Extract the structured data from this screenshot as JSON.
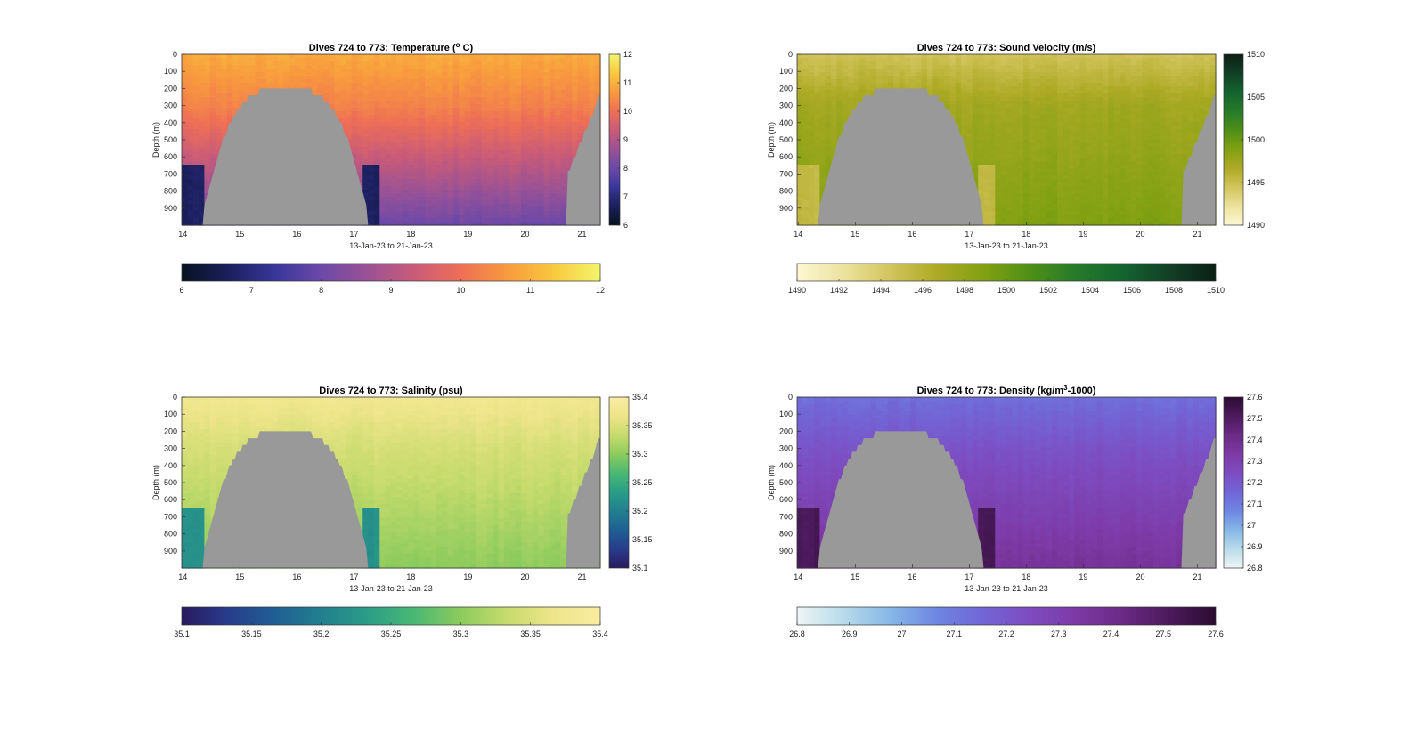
{
  "chart_data": [
    {
      "type": "heatmap",
      "title_prefix": "Dives 724 to 773: Temperature (",
      "title_sup": "o",
      "title_suffix": " C)",
      "xlabel": "13-Jan-23 to 21-Jan-23",
      "ylabel": "Depth (m)",
      "x_ticks": [
        "14",
        "15",
        "16",
        "17",
        "18",
        "19",
        "20",
        "21"
      ],
      "y_ticks": [
        "0",
        "100",
        "200",
        "300",
        "400",
        "500",
        "600",
        "700",
        "800",
        "900"
      ],
      "xlim": [
        13.98,
        21.32
      ],
      "ylim": [
        0,
        1000
      ],
      "clim": [
        6,
        12
      ],
      "colorbar_ticks": [
        "6",
        "7",
        "8",
        "9",
        "10",
        "11",
        "12"
      ],
      "colormap": [
        "#06131f",
        "#1b1f5c",
        "#38369a",
        "#6b49a8",
        "#9a5295",
        "#c95b78",
        "#ee6f56",
        "#f89a3e",
        "#f8c93e",
        "#f3f56c"
      ],
      "profile": {
        "top": 10.9,
        "thermocline": 10.3,
        "bottom": 8.0,
        "hole": 6.7
      }
    },
    {
      "type": "heatmap",
      "title_prefix": "Dives 724 to 773: Sound Velocity (m/s)",
      "title_sup": "",
      "title_suffix": "",
      "xlabel": "13-Jan-23 to 21-Jan-23",
      "ylabel": "Depth (m)",
      "x_ticks": [
        "14",
        "15",
        "16",
        "17",
        "18",
        "19",
        "20",
        "21"
      ],
      "y_ticks": [
        "0",
        "100",
        "200",
        "300",
        "400",
        "500",
        "600",
        "700",
        "800",
        "900"
      ],
      "xlim": [
        13.98,
        21.32
      ],
      "ylim": [
        0,
        1000
      ],
      "clim": [
        1490,
        1510
      ],
      "colorbar_ticks": [
        "1490",
        "1492",
        "1494",
        "1496",
        "1498",
        "1500",
        "1502",
        "1504",
        "1506",
        "1508",
        "1510"
      ],
      "side_colorbar_ticks": [
        "1490",
        "1495",
        "1500",
        "1505",
        "1510"
      ],
      "colormap": [
        "#fdf8d4",
        "#ece29e",
        "#d2c45d",
        "#adaa25",
        "#82a112",
        "#4f8f17",
        "#267a2a",
        "#14642f",
        "#123f26",
        "#0c1f14"
      ],
      "profile": {
        "top": 1494.6,
        "thermocline": 1497.3,
        "bottom": 1499.0,
        "hole": 1495.5
      }
    },
    {
      "type": "heatmap",
      "title_prefix": "Dives 724 to 773: Salinity (psu)",
      "title_sup": "",
      "title_suffix": "",
      "xlabel": "13-Jan-23 to 21-Jan-23",
      "ylabel": "Depth (m)",
      "x_ticks": [
        "14",
        "15",
        "16",
        "17",
        "18",
        "19",
        "20",
        "21"
      ],
      "y_ticks": [
        "0",
        "100",
        "200",
        "300",
        "400",
        "500",
        "600",
        "700",
        "800",
        "900"
      ],
      "xlim": [
        13.98,
        21.32
      ],
      "ylim": [
        0,
        1000
      ],
      "clim": [
        35.1,
        35.4
      ],
      "colorbar_ticks": [
        "35.1",
        "35.15",
        "35.2",
        "35.25",
        "35.3",
        "35.35",
        "35.4"
      ],
      "colormap": [
        "#2a1a5e",
        "#283c8c",
        "#1f5f94",
        "#227f8f",
        "#2a9d87",
        "#4ab873",
        "#8dcb5d",
        "#c7db6d",
        "#eee58a",
        "#f9eca1"
      ],
      "profile": {
        "top": 35.375,
        "thermocline": 35.345,
        "bottom": 35.3,
        "hole": 35.22
      }
    },
    {
      "type": "heatmap",
      "title_prefix": "Dives 724 to 773: Density (kg/m",
      "title_sup": "3",
      "title_suffix": "-1000)",
      "xlabel": "13-Jan-23 to 21-Jan-23",
      "ylabel": "Depth (m)",
      "x_ticks": [
        "14",
        "15",
        "16",
        "17",
        "18",
        "19",
        "20",
        "21"
      ],
      "y_ticks": [
        "0",
        "100",
        "200",
        "300",
        "400",
        "500",
        "600",
        "700",
        "800",
        "900"
      ],
      "xlim": [
        13.98,
        21.32
      ],
      "ylim": [
        0,
        1000
      ],
      "clim": [
        26.8,
        27.6
      ],
      "colorbar_ticks": [
        "26.8",
        "26.9",
        "27",
        "27.1",
        "27.2",
        "27.3",
        "27.4",
        "27.5",
        "27.6"
      ],
      "side_colorbar_ticks": [
        "26.8",
        "26.9",
        "27",
        "27.1",
        "27.2",
        "27.3",
        "27.4",
        "27.5",
        "27.6"
      ],
      "colormap": [
        "#eef5f5",
        "#b8dbea",
        "#86b7e6",
        "#6e86e2",
        "#7265d6",
        "#7d4cc0",
        "#7d3aa6",
        "#6a2a85",
        "#4c1a5c",
        "#2c0c31"
      ],
      "profile": {
        "top": 27.13,
        "thermocline": 27.22,
        "bottom": 27.37,
        "hole": 27.52
      }
    }
  ],
  "no_data_color": "#999999"
}
